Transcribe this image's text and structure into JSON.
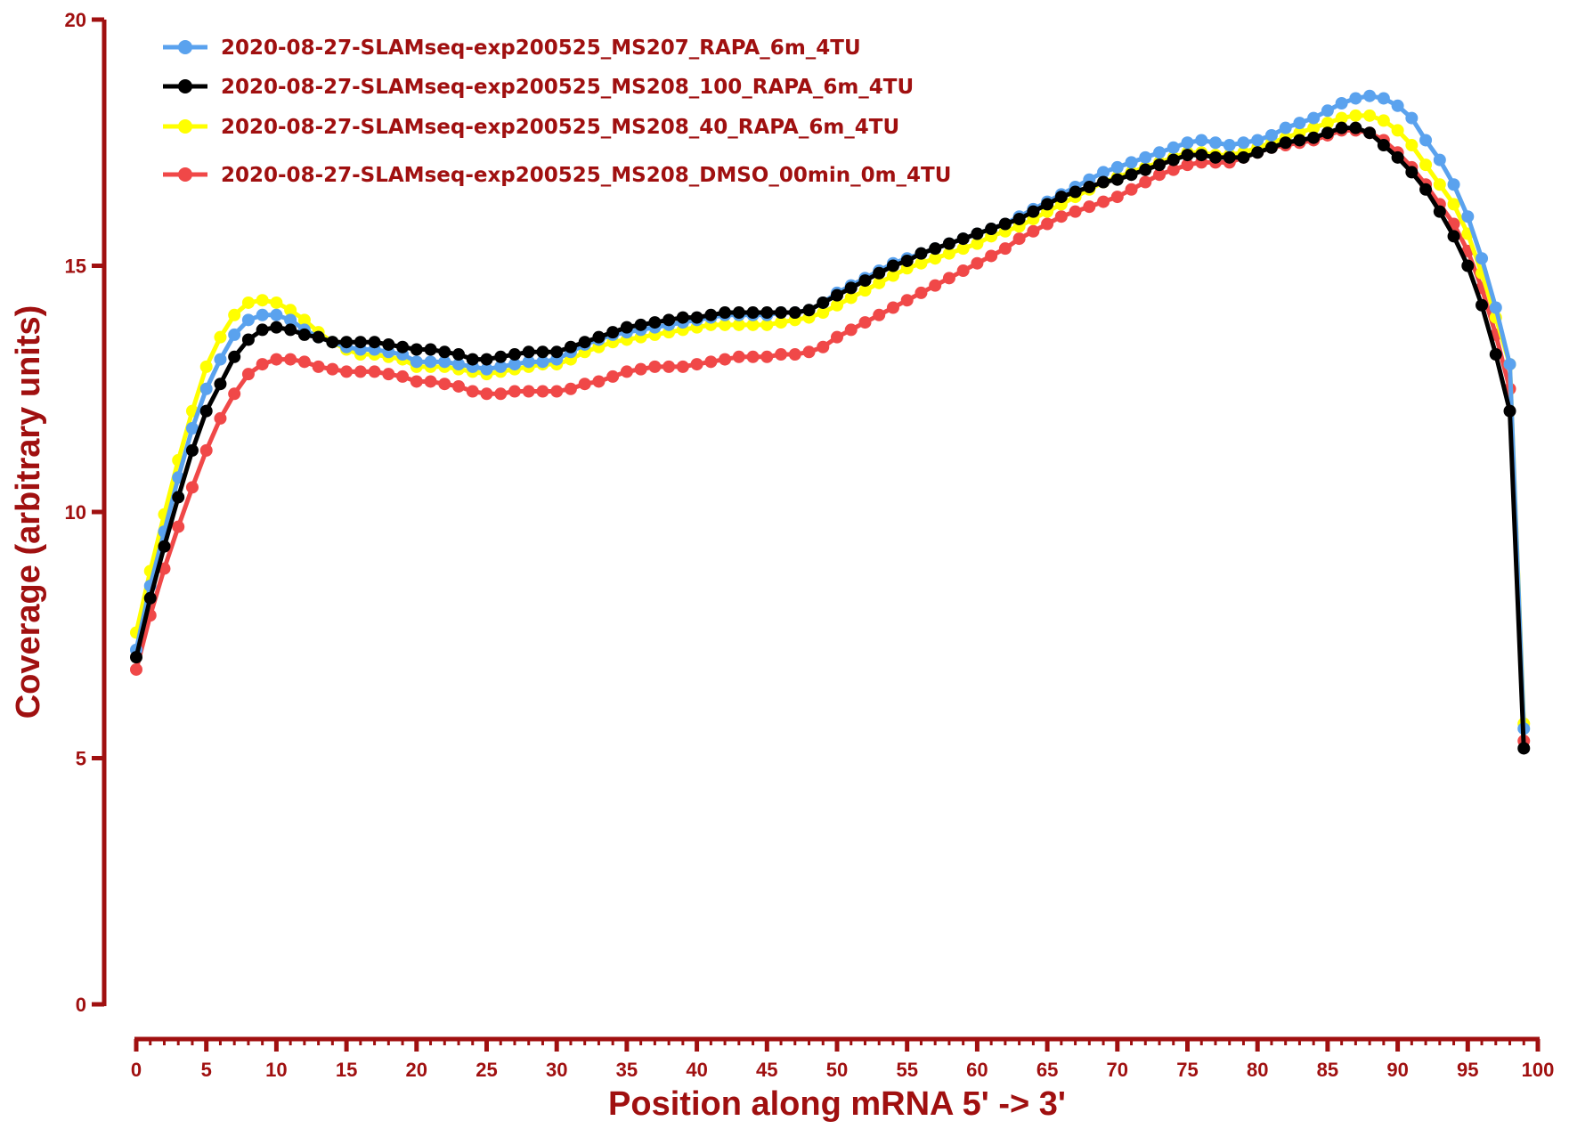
{
  "chart_data": {
    "type": "line",
    "title": "",
    "xlabel": "Position along mRNA 5' -> 3'",
    "ylabel": "Coverage (arbitrary units)",
    "xlim": [
      0,
      100
    ],
    "ylim": [
      0,
      20
    ],
    "xticks": [
      0,
      5,
      10,
      15,
      20,
      25,
      30,
      35,
      40,
      45,
      50,
      55,
      60,
      65,
      70,
      75,
      80,
      85,
      90,
      95,
      100
    ],
    "yticks": [
      0,
      5,
      10,
      15,
      20
    ],
    "grid": false,
    "legend_position": "top-left",
    "axis_color": "#a01010",
    "x": [
      0,
      1,
      2,
      3,
      4,
      5,
      6,
      7,
      8,
      9,
      10,
      11,
      12,
      13,
      14,
      15,
      16,
      17,
      18,
      19,
      20,
      21,
      22,
      23,
      24,
      25,
      26,
      27,
      28,
      29,
      30,
      31,
      32,
      33,
      34,
      35,
      36,
      37,
      38,
      39,
      40,
      41,
      42,
      43,
      44,
      45,
      46,
      47,
      48,
      49,
      50,
      51,
      52,
      53,
      54,
      55,
      56,
      57,
      58,
      59,
      60,
      61,
      62,
      63,
      64,
      65,
      66,
      67,
      68,
      69,
      70,
      71,
      72,
      73,
      74,
      75,
      76,
      77,
      78,
      79,
      80,
      81,
      82,
      83,
      84,
      85,
      86,
      87,
      88,
      89,
      90,
      91,
      92,
      93,
      94,
      95,
      96,
      97,
      98,
      99
    ],
    "series": [
      {
        "name": "2020-08-27-SLAMseq-exp200525_MS207_RAPA_6m_4TU",
        "color": "#5aa2ee",
        "values": [
          7.2,
          8.5,
          9.6,
          10.7,
          11.7,
          12.5,
          13.1,
          13.6,
          13.9,
          14.0,
          14.0,
          13.9,
          13.7,
          13.55,
          13.45,
          13.35,
          13.3,
          13.3,
          13.25,
          13.2,
          13.05,
          13.05,
          13.05,
          13.0,
          12.95,
          12.9,
          12.95,
          13.0,
          13.05,
          13.05,
          13.1,
          13.25,
          13.4,
          13.5,
          13.6,
          13.65,
          13.7,
          13.75,
          13.8,
          13.85,
          13.9,
          13.95,
          14.0,
          14.0,
          14.0,
          14.0,
          14.05,
          14.05,
          14.1,
          14.25,
          14.45,
          14.6,
          14.75,
          14.9,
          15.05,
          15.15,
          15.25,
          15.35,
          15.45,
          15.55,
          15.65,
          15.75,
          15.85,
          16.0,
          16.15,
          16.3,
          16.45,
          16.6,
          16.75,
          16.9,
          17.0,
          17.1,
          17.2,
          17.3,
          17.4,
          17.5,
          17.55,
          17.5,
          17.45,
          17.5,
          17.55,
          17.65,
          17.8,
          17.9,
          18.0,
          18.15,
          18.3,
          18.4,
          18.45,
          18.4,
          18.25,
          18.0,
          17.55,
          17.15,
          16.65,
          16.0,
          15.15,
          14.15,
          13.0,
          5.6
        ]
      },
      {
        "name": "2020-08-27-SLAMseq-exp200525_MS208_100_RAPA_6m_4TU",
        "color": "#000000",
        "values": [
          7.05,
          8.25,
          9.3,
          10.3,
          11.25,
          12.05,
          12.6,
          13.15,
          13.5,
          13.7,
          13.75,
          13.7,
          13.6,
          13.55,
          13.45,
          13.45,
          13.45,
          13.45,
          13.4,
          13.35,
          13.3,
          13.3,
          13.25,
          13.2,
          13.1,
          13.1,
          13.15,
          13.2,
          13.25,
          13.25,
          13.25,
          13.35,
          13.45,
          13.55,
          13.65,
          13.75,
          13.8,
          13.85,
          13.9,
          13.95,
          13.95,
          14.0,
          14.05,
          14.05,
          14.05,
          14.05,
          14.05,
          14.05,
          14.1,
          14.25,
          14.4,
          14.55,
          14.7,
          14.85,
          15.0,
          15.1,
          15.25,
          15.35,
          15.45,
          15.55,
          15.65,
          15.75,
          15.85,
          15.95,
          16.1,
          16.25,
          16.4,
          16.5,
          16.6,
          16.7,
          16.75,
          16.85,
          16.95,
          17.05,
          17.15,
          17.25,
          17.25,
          17.2,
          17.2,
          17.2,
          17.3,
          17.4,
          17.5,
          17.55,
          17.6,
          17.7,
          17.8,
          17.8,
          17.7,
          17.45,
          17.2,
          16.9,
          16.55,
          16.1,
          15.6,
          15.0,
          14.2,
          13.2,
          12.05,
          5.2
        ]
      },
      {
        "name": "2020-08-27-SLAMseq-exp200525_MS208_40_RAPA_6m_4TU",
        "color": "#ffff00",
        "values": [
          7.55,
          8.8,
          9.95,
          11.05,
          12.05,
          12.95,
          13.55,
          14.0,
          14.25,
          14.3,
          14.25,
          14.1,
          13.9,
          13.65,
          13.45,
          13.3,
          13.2,
          13.2,
          13.15,
          13.1,
          12.95,
          12.95,
          12.95,
          12.9,
          12.85,
          12.8,
          12.85,
          12.9,
          12.95,
          13.0,
          13.0,
          13.1,
          13.25,
          13.35,
          13.45,
          13.5,
          13.55,
          13.6,
          13.65,
          13.7,
          13.75,
          13.8,
          13.8,
          13.8,
          13.8,
          13.8,
          13.85,
          13.9,
          13.95,
          14.05,
          14.2,
          14.35,
          14.5,
          14.65,
          14.8,
          14.95,
          15.05,
          15.15,
          15.25,
          15.35,
          15.45,
          15.6,
          15.7,
          15.8,
          15.95,
          16.1,
          16.25,
          16.4,
          16.55,
          16.7,
          16.8,
          16.9,
          17.0,
          17.1,
          17.2,
          17.3,
          17.3,
          17.25,
          17.25,
          17.3,
          17.4,
          17.5,
          17.6,
          17.7,
          17.8,
          17.9,
          18.0,
          18.05,
          18.05,
          17.95,
          17.75,
          17.45,
          17.05,
          16.65,
          16.25,
          15.65,
          14.85,
          13.95,
          13.0,
          5.7
        ]
      },
      {
        "name": "2020-08-27-SLAMseq-exp200525_MS208_DMSO_00min_0m_4TU",
        "color": "#f04848",
        "values": [
          6.8,
          7.9,
          8.85,
          9.7,
          10.5,
          11.25,
          11.9,
          12.4,
          12.8,
          13.0,
          13.1,
          13.1,
          13.05,
          12.95,
          12.9,
          12.85,
          12.85,
          12.85,
          12.8,
          12.75,
          12.65,
          12.65,
          12.6,
          12.55,
          12.45,
          12.4,
          12.4,
          12.45,
          12.45,
          12.45,
          12.45,
          12.5,
          12.6,
          12.65,
          12.75,
          12.85,
          12.9,
          12.95,
          12.95,
          12.95,
          13.0,
          13.05,
          13.1,
          13.15,
          13.15,
          13.15,
          13.2,
          13.2,
          13.25,
          13.35,
          13.55,
          13.7,
          13.85,
          14.0,
          14.15,
          14.3,
          14.45,
          14.6,
          14.75,
          14.9,
          15.05,
          15.2,
          15.35,
          15.55,
          15.7,
          15.85,
          16.0,
          16.1,
          16.2,
          16.3,
          16.4,
          16.55,
          16.7,
          16.85,
          16.95,
          17.05,
          17.1,
          17.1,
          17.1,
          17.2,
          17.3,
          17.4,
          17.45,
          17.5,
          17.55,
          17.65,
          17.75,
          17.75,
          17.7,
          17.55,
          17.3,
          17.0,
          16.65,
          16.25,
          15.85,
          15.3,
          14.55,
          13.6,
          12.5,
          5.35
        ]
      }
    ]
  }
}
